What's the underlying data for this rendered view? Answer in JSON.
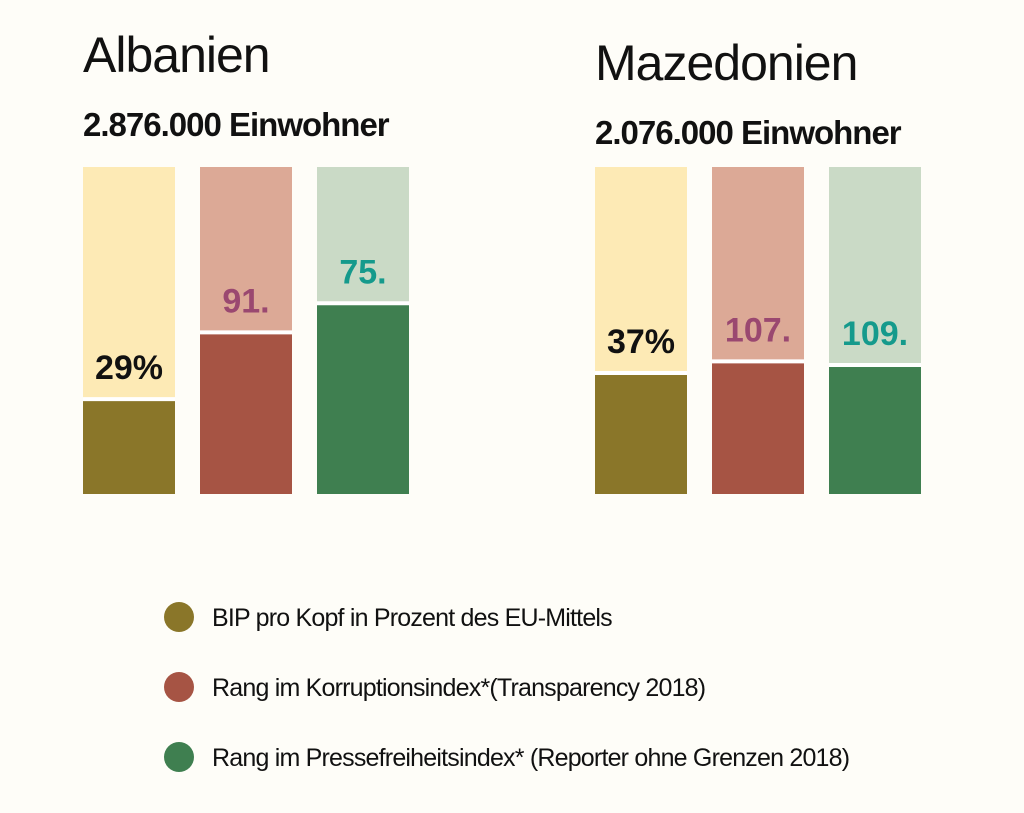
{
  "chart_data": {
    "type": "bar",
    "categories": [
      "Albanien",
      "Mazedonien"
    ],
    "subtitles": [
      "2.876.000 Einwohner",
      "2.076.000 Einwohner"
    ],
    "series": [
      {
        "name": "BIP pro Kopf in Prozent des EU-Mittels",
        "color": "#8a7629",
        "background_color": "#fdeab5",
        "label_color": "#111111",
        "values": [
          29,
          37
        ],
        "value_labels": [
          "29%",
          "37%"
        ],
        "ylim": [
          0,
          100
        ]
      },
      {
        "name": "Rang im Korruptionsindex*(Transparency 2018)",
        "color": "#a65444",
        "background_color": "#dca996",
        "label_color": "#9a4870",
        "values": [
          91,
          107
        ],
        "value_labels": [
          "91.",
          "107."
        ],
        "ylim": [
          180,
          0
        ]
      },
      {
        "name": "Rang im Pressefreiheitsindex* (Reporter ohne Grenzen 2018)",
        "color": "#3f7f50",
        "background_color": "#cadac6",
        "label_color": "#159a8c",
        "values": [
          75,
          109
        ],
        "value_labels": [
          "75.",
          "109."
        ],
        "ylim": [
          180,
          0
        ]
      }
    ]
  }
}
